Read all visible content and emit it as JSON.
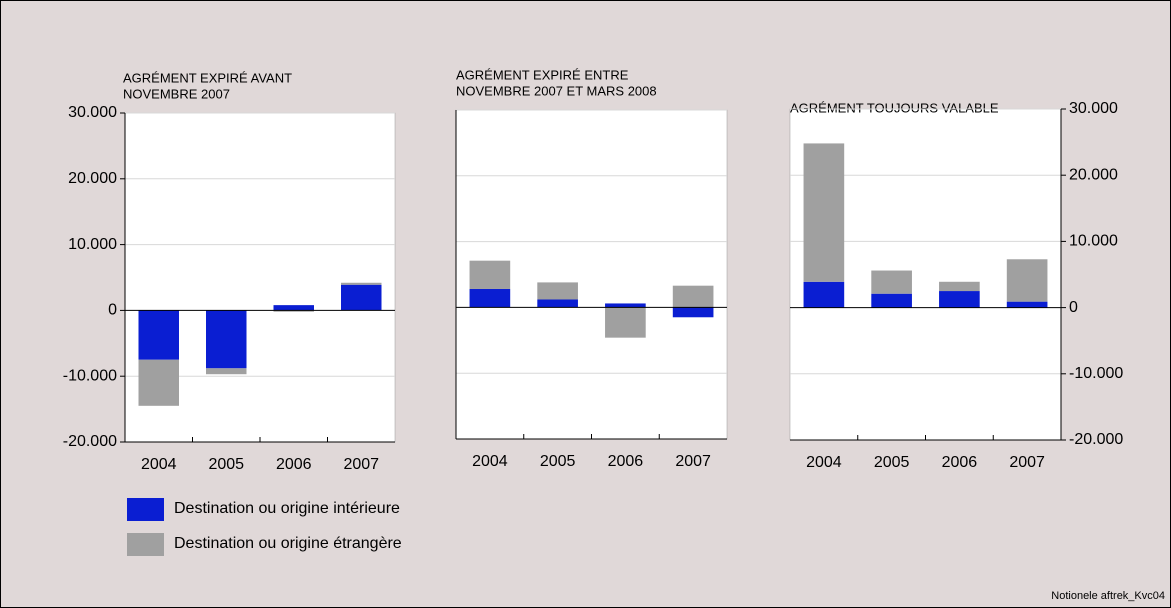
{
  "footnote": "Notionele aftrek_Kvc04",
  "chart_data": [
    {
      "type": "bar",
      "stacked": true,
      "yaxis_labels": "left",
      "grid": true,
      "title": [
        "AGRÉMENT EXPIRÉ AVANT",
        "NOVEMBRE 2007"
      ],
      "categories": [
        "2004",
        "2005",
        "2006",
        "2007"
      ],
      "series": [
        {
          "name": "Destination ou origine intérieure",
          "color": "#0a1ed2",
          "values": [
            -7500,
            -8800,
            800,
            3900
          ]
        },
        {
          "name": "Destination ou origine étrangère",
          "color": "#a0a0a0",
          "values": [
            -7000,
            -900,
            -200,
            300
          ]
        }
      ],
      "ylim": [
        -20000,
        30000
      ],
      "yticks": [
        {
          "value": -20000,
          "label": "-20.000"
        },
        {
          "value": -10000,
          "label": "-10.000"
        },
        0,
        {
          "value": 10000,
          "label": "10.000"
        },
        {
          "value": 20000,
          "label": "20.000"
        },
        {
          "value": 30000,
          "label": "30.000"
        }
      ]
    },
    {
      "type": "bar",
      "stacked": true,
      "yaxis_labels": "none",
      "grid": true,
      "title": [
        "AGRÉMENT EXPIRÉ ENTRE",
        "NOVEMBRE 2007 ET MARS 2008"
      ],
      "categories": [
        "2004",
        "2005",
        "2006",
        "2007"
      ],
      "series": [
        {
          "name": "Destination ou origine intérieure",
          "color": "#0a1ed2",
          "values": [
            2800,
            1200,
            600,
            -1500
          ]
        },
        {
          "name": "Destination ou origine étrangère",
          "color": "#a0a0a0",
          "values": [
            4300,
            2600,
            -4600,
            3300
          ]
        }
      ],
      "ylim": [
        -20000,
        30000
      ],
      "yticks": [
        {
          "value": -20000,
          "label": "-20.000"
        },
        {
          "value": -10000,
          "label": "-10.000"
        },
        0,
        {
          "value": 10000,
          "label": "10.000"
        },
        {
          "value": 20000,
          "label": "20.000"
        },
        {
          "value": 30000,
          "label": "30.000"
        }
      ]
    },
    {
      "type": "bar",
      "stacked": true,
      "yaxis_labels": "right",
      "grid": true,
      "title": [
        "AGRÉMENT TOUJOURS VALABLE"
      ],
      "categories": [
        "2004",
        "2005",
        "2006",
        "2007"
      ],
      "series": [
        {
          "name": "Destination ou origine intérieure",
          "color": "#0a1ed2",
          "values": [
            3900,
            2100,
            2500,
            900
          ]
        },
        {
          "name": "Destination ou origine étrangère",
          "color": "#a0a0a0",
          "values": [
            20900,
            3500,
            1400,
            6400
          ]
        }
      ],
      "ylim": [
        -20000,
        30000
      ],
      "yticks": [
        {
          "value": -20000,
          "label": "-20.000"
        },
        {
          "value": -10000,
          "label": "-10.000"
        },
        0,
        {
          "value": 10000,
          "label": "10.000"
        },
        {
          "value": 20000,
          "label": "20.000"
        },
        {
          "value": 30000,
          "label": "30.000"
        }
      ]
    }
  ]
}
